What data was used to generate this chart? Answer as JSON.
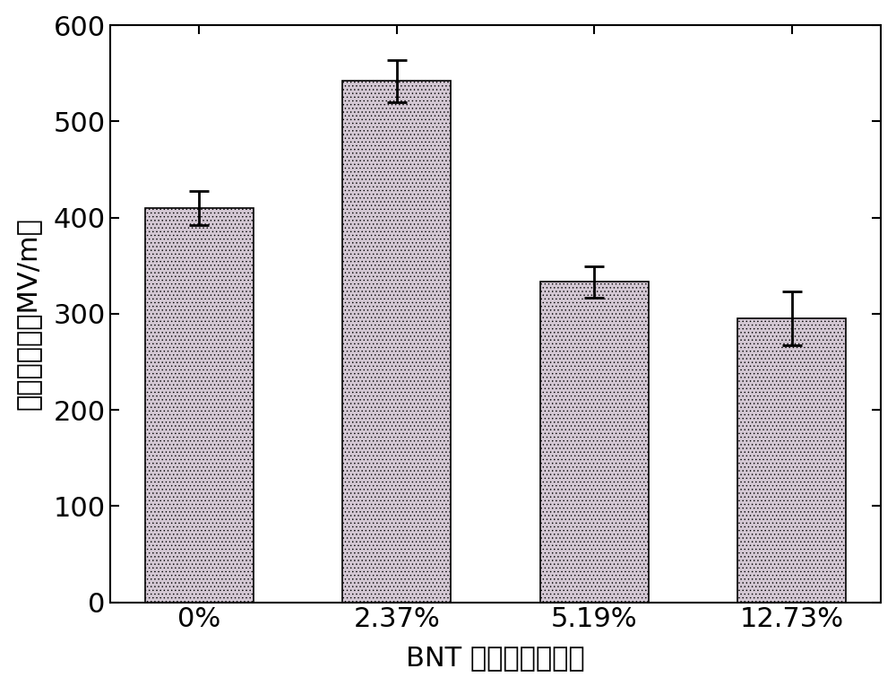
{
  "categories": [
    "0%",
    "2.37%",
    "5.19%",
    "12.73%"
  ],
  "values": [
    410,
    542,
    333,
    295
  ],
  "errors": [
    18,
    22,
    16,
    28
  ],
  "bar_facecolor": "#d4c8d4",
  "bar_edgecolor": "#000000",
  "hatch_color": "#90c090",
  "error_color": "#000000",
  "ylabel": "抗击穿电场（MV/m）",
  "xlabel": "BNT 纳米线体积分数",
  "ylim": [
    0,
    600
  ],
  "yticks": [
    0,
    100,
    200,
    300,
    400,
    500,
    600
  ],
  "background_color": "#ffffff",
  "bar_width": 0.55,
  "ylabel_fontsize": 22,
  "xlabel_fontsize": 22,
  "tick_fontsize": 22,
  "capsize": 8,
  "figure_width": 10.0,
  "figure_height": 7.65
}
